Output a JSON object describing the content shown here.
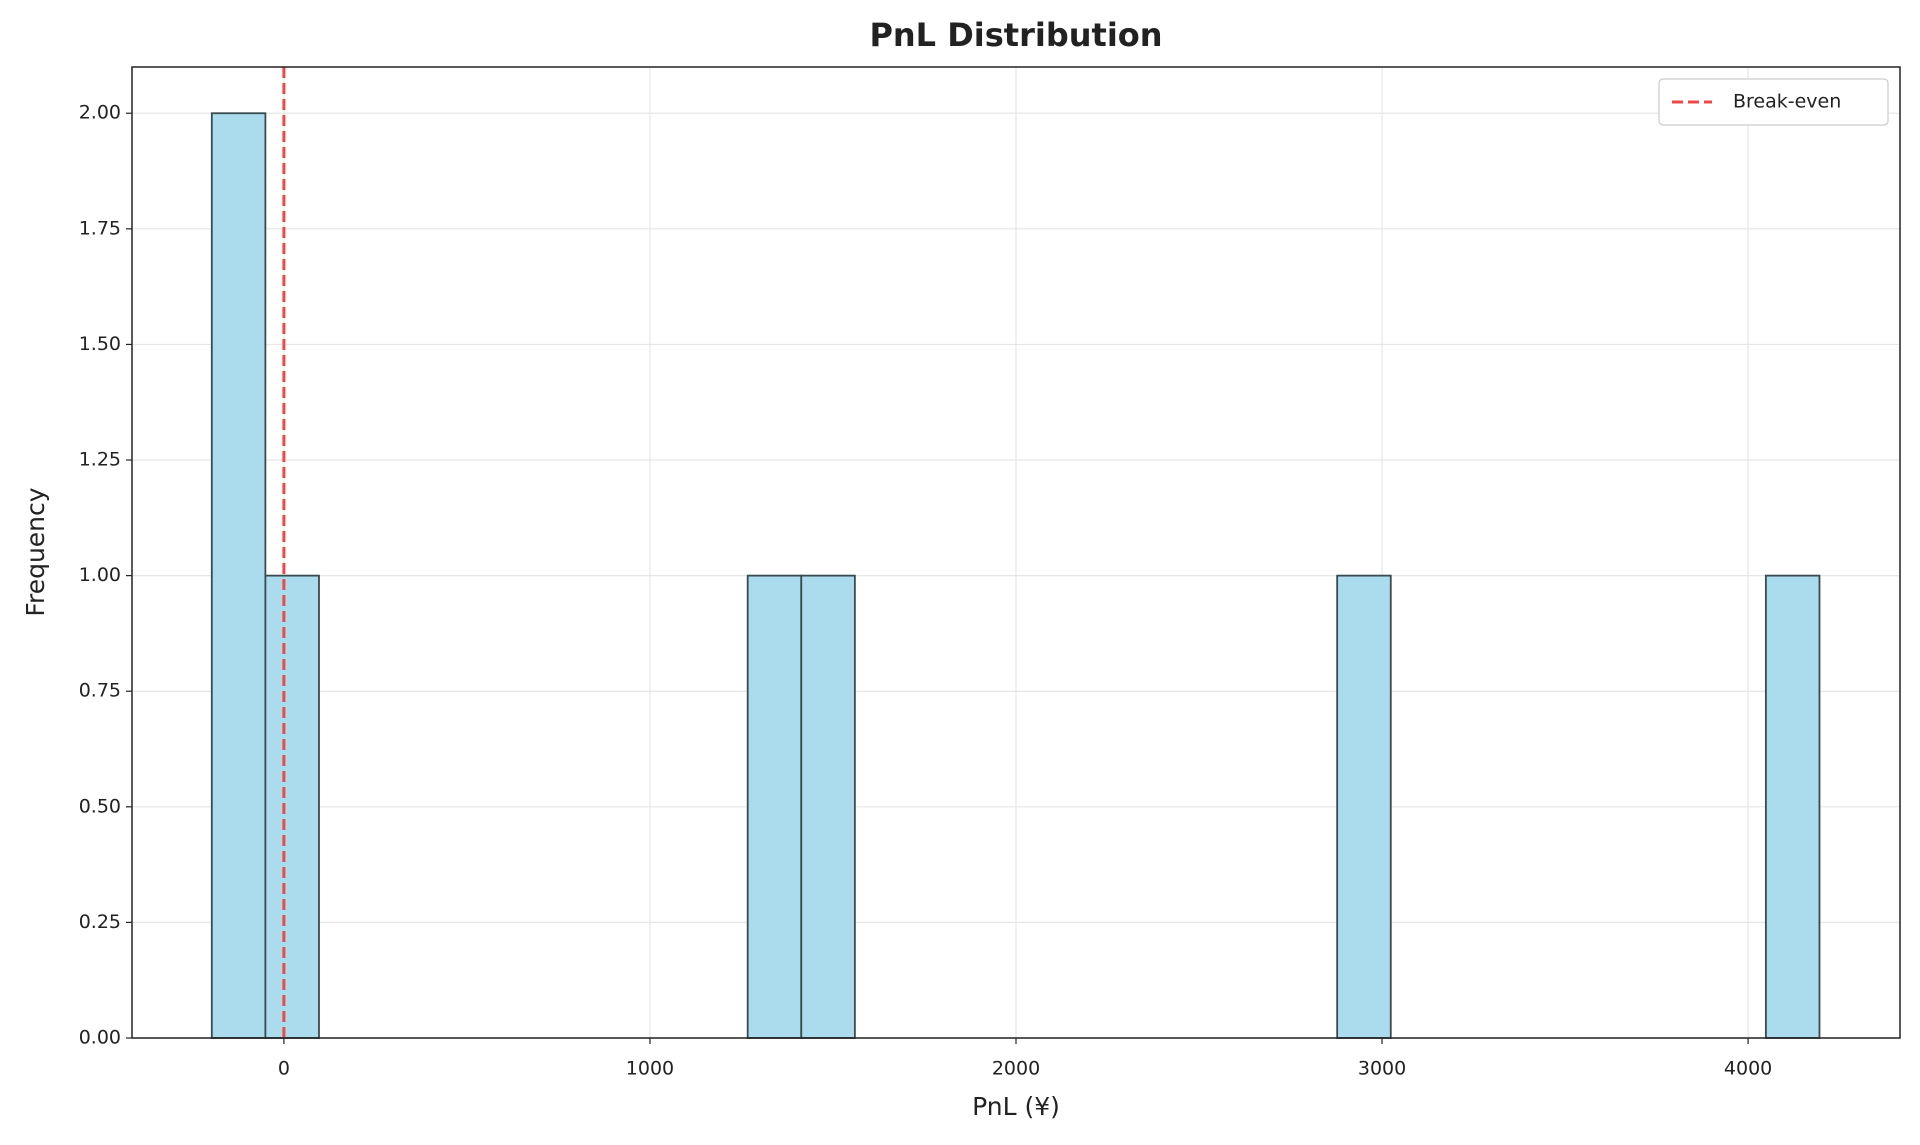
{
  "chart_data": {
    "type": "histogram",
    "title": "PnL Distribution",
    "x_label": "PnL (¥)",
    "y_label": "Frequency",
    "bins": [
      -197,
      -50.6,
      95.8,
      242.2,
      388.6,
      535,
      681.4,
      827.8,
      974.2,
      1120.6,
      1267,
      1413.4,
      1559.8,
      1706.2,
      1852.6,
      1999,
      2145.4,
      2291.8,
      2438.2,
      2584.6,
      2731,
      2877.4,
      3023.8,
      3170.2,
      3316.6,
      3463,
      3609.4,
      3755.8,
      3902.2,
      4048.6,
      4195
    ],
    "values": [
      2,
      1,
      0,
      0,
      0,
      0,
      0,
      0,
      0,
      0,
      1,
      1,
      0,
      0,
      0,
      0,
      0,
      0,
      0,
      0,
      0,
      1,
      0,
      0,
      0,
      0,
      0,
      0,
      0,
      1
    ],
    "color": "#abdcee",
    "edge_color": "#3a4a50",
    "xlim": [
      -415,
      4415
    ],
    "ylim": [
      0,
      2.1
    ],
    "xticks": [
      0,
      1000,
      2000,
      3000,
      4000
    ],
    "yticks": [
      {
        "value": 0,
        "label": "0.00"
      },
      {
        "value": 0.25,
        "label": "0.25"
      },
      {
        "value": 0.5,
        "label": "0.50"
      },
      {
        "value": 0.75,
        "label": "0.75"
      },
      {
        "value": 1,
        "label": "1.00"
      },
      {
        "value": 1.25,
        "label": "1.25"
      },
      {
        "value": 1.5,
        "label": "1.50"
      },
      {
        "value": 1.75,
        "label": "1.75"
      },
      {
        "value": 2,
        "label": "2.00"
      }
    ],
    "grid": true,
    "reference_line": {
      "x": 0,
      "name": "Break-even",
      "color": "#f04848"
    },
    "legend": "upper right"
  }
}
